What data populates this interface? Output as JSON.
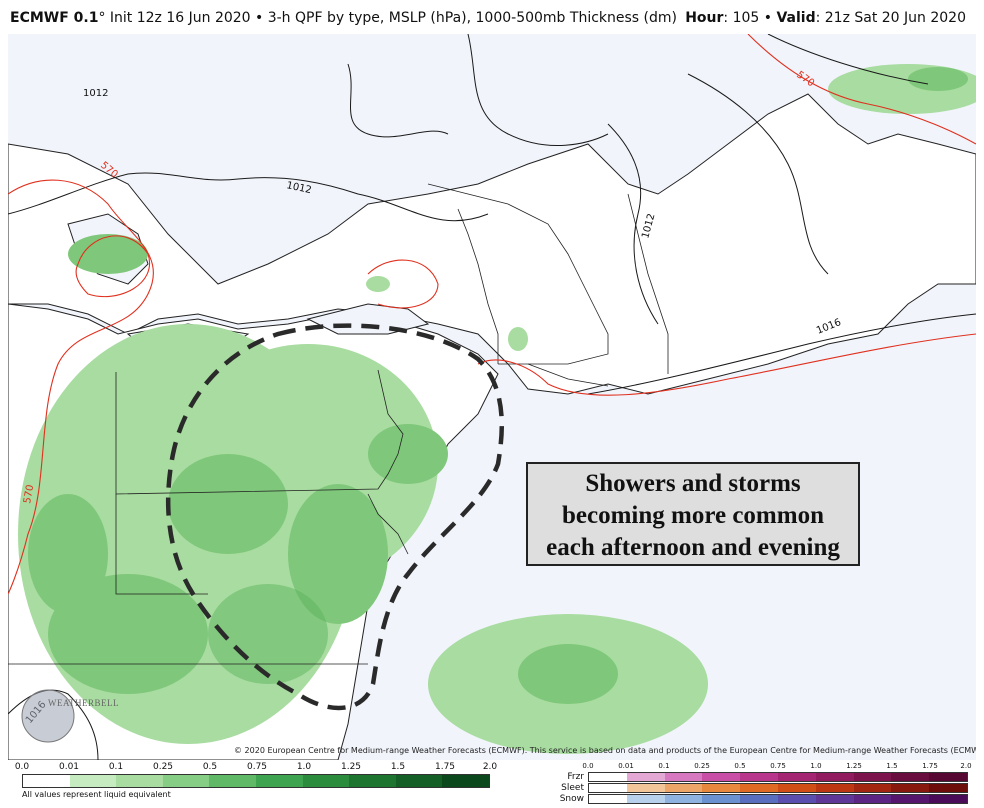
{
  "header": {
    "model": "ECMWF 0.1",
    "degree": "°",
    "details": " Init 12z 16 Jun 2020 • 3-h QPF by type, MSLP (hPa), 1000-500mb Thickness (dm)",
    "hour_label": "Hour",
    "hour_value": ": 105 • ",
    "valid_label": "Valid",
    "valid_value": ": 21z Sat 20 Jun 2020"
  },
  "map": {
    "isobar_labels": [
      "1012",
      "1012",
      "1012",
      "1016",
      "1016"
    ],
    "thickness_labels": [
      "570",
      "570",
      "570"
    ],
    "callout": [
      "Showers and storms",
      "becoming more common",
      "each afternoon and evening"
    ],
    "copyright": "© 2020 European Centre for Medium-range Weather Forecasts (ECMWF). This service is based on data and products of the European Centre for Medium-range Weather Forecasts (ECMWF).",
    "logo": "WEATHERBELL",
    "colors": {
      "ocean": "#f1f4fb",
      "land": "#ffffff",
      "precip_light": "#a8dca0",
      "precip_mid": "#7fc77a",
      "precip_heavy": "#5bb35e",
      "thickness_line": "#e0301e",
      "isobar_line": "#1a1a1a"
    }
  },
  "legend": {
    "rain_ticks": [
      "0.0",
      "0.01",
      "0.1",
      "0.25",
      "0.5",
      "0.75",
      "1.0",
      "1.25",
      "1.5",
      "1.75",
      "2.0"
    ],
    "rain_colors": [
      "#ffffff",
      "#c7ebc0",
      "#a8dca0",
      "#86cd85",
      "#5fb966",
      "#3fa44f",
      "#2a8c3c",
      "#1d7530",
      "#135f26",
      "#0b481b"
    ],
    "note": "All values represent liquid equivalent",
    "type_ticks": [
      "0.0",
      "0.01",
      "0.1",
      "0.25",
      "0.5",
      "0.75",
      "1.0",
      "1.25",
      "1.5",
      "1.75",
      "2.0"
    ],
    "frzr_label": "Frzr",
    "sleet_label": "Sleet",
    "snow_label": "Snow",
    "frzr_colors": [
      "#ffffff",
      "#e4a8d4",
      "#d679c0",
      "#c94fa6",
      "#b8368c",
      "#a42673",
      "#911b5f",
      "#7d134d",
      "#690c3e",
      "#560732"
    ],
    "sleet_colors": [
      "#ffffff",
      "#f3c69a",
      "#eea668",
      "#e8883f",
      "#e06a23",
      "#d24e17",
      "#bd3812",
      "#a32710",
      "#88190e",
      "#6e0e0b"
    ],
    "snow_colors": [
      "#ffffff",
      "#b7d0ec",
      "#8fb3e0",
      "#6b92d0",
      "#5a6ec0",
      "#5a4fae",
      "#5e3799",
      "#5c2483",
      "#56166d",
      "#4a0c58"
    ]
  }
}
